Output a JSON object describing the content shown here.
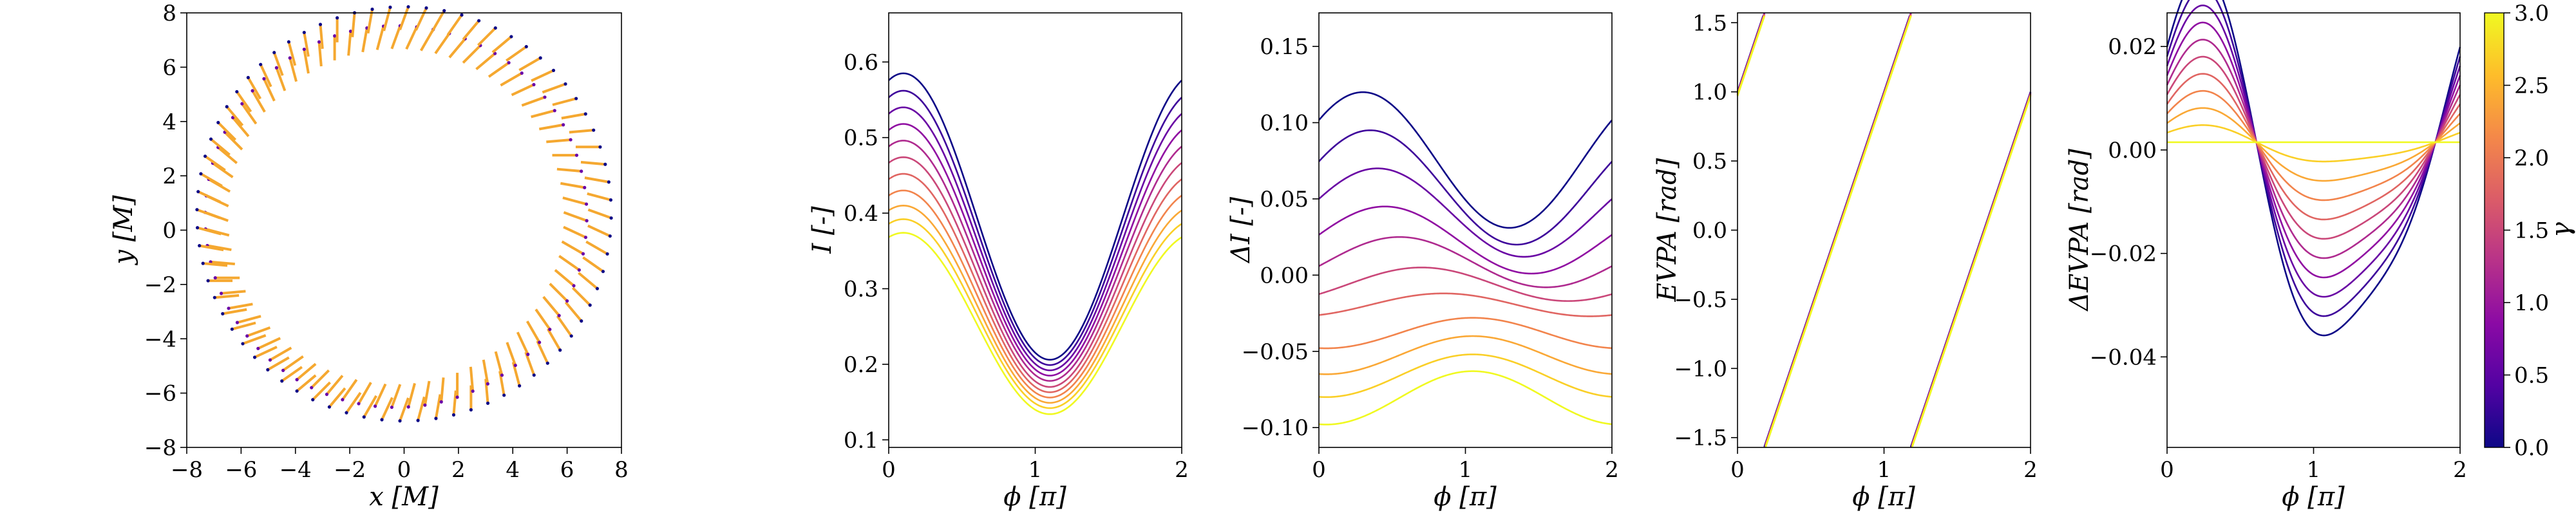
{
  "chart_data": [
    {
      "type": "scatter",
      "title": "",
      "xlabel": "x [M]",
      "ylabel": "y [M]",
      "xlim": [
        -8,
        8
      ],
      "ylim": [
        -8,
        8
      ],
      "xticks": [
        -8,
        -6,
        -4,
        -2,
        0,
        2,
        4,
        6,
        8
      ],
      "yticks": [
        -8,
        -6,
        -4,
        -2,
        0,
        2,
        4,
        6,
        8
      ],
      "ring": {
        "n_sticks": 72,
        "inner_center": [
          -0.3,
          0.5
        ],
        "inner_radius": 6.6,
        "outer_center": [
          0.0,
          0.6
        ],
        "outer_radius": 7.2,
        "stick_length": 0.9,
        "stick_angle_offset_deg": -20
      },
      "colors": {
        "sticks": "#f5a830",
        "dots_inner": "#6a00a8",
        "dots_outer": "#0d0887"
      },
      "grid": false
    },
    {
      "type": "line",
      "xlabel": "ϕ [π]",
      "ylabel": "I [-]",
      "xlim": [
        0,
        2
      ],
      "ylim": [
        0.09,
        0.665
      ],
      "xticks": [
        0,
        1,
        2
      ],
      "yticks": [
        0.1,
        0.2,
        0.3,
        0.4,
        0.5,
        0.6
      ],
      "series_model": "I(ϕ) = a + b·cos(π(ϕ − 0.1))",
      "x_min": 1.1,
      "x_max": 0.1,
      "gammas": [
        0.0,
        0.3,
        0.6,
        0.9,
        1.2,
        1.5,
        1.8,
        2.1,
        2.4,
        2.7,
        3.0
      ],
      "min_values": [
        0.206,
        0.199,
        0.192,
        0.185,
        0.178,
        0.17,
        0.163,
        0.156,
        0.149,
        0.142,
        0.134
      ],
      "max_values": [
        0.585,
        0.562,
        0.54,
        0.518,
        0.496,
        0.474,
        0.452,
        0.43,
        0.41,
        0.392,
        0.374
      ],
      "grid": false
    },
    {
      "type": "line",
      "xlabel": "ϕ [π]",
      "ylabel": "ΔI [-]",
      "xlim": [
        0,
        2
      ],
      "ylim": [
        -0.113,
        0.172
      ],
      "xticks": [
        0,
        1,
        2
      ],
      "yticks": [
        -0.1,
        -0.05,
        0.0,
        0.05,
        0.1,
        0.15
      ],
      "series_model": "ΔI(ϕ) = c + d·cos(π(ϕ − p))",
      "gammas": [
        0.0,
        0.3,
        0.6,
        0.9,
        1.2,
        1.5,
        1.8,
        2.1,
        2.4,
        2.7,
        3.0
      ],
      "max_values": [
        0.12,
        0.095,
        0.07,
        0.045,
        0.025,
        0.005,
        -0.012,
        -0.028,
        -0.04,
        -0.052,
        -0.063
      ],
      "min_values": [
        0.031,
        0.02,
        0.012,
        0.001,
        -0.008,
        -0.017,
        -0.027,
        -0.048,
        -0.065,
        -0.08,
        -0.098
      ],
      "max_positions": [
        0.3,
        0.35,
        0.4,
        0.45,
        0.55,
        0.7,
        0.85,
        1.05,
        1.05,
        1.05,
        1.05
      ],
      "grid": false
    },
    {
      "type": "line",
      "xlabel": "ϕ [π]",
      "ylabel": "EVPA [rad]",
      "xlim": [
        0,
        2
      ],
      "ylim": [
        -1.571,
        1.571
      ],
      "xticks": [
        0,
        1,
        2
      ],
      "yticks": [
        -1.5,
        -1.0,
        -0.5,
        0.0,
        0.5,
        1.0,
        1.5
      ],
      "series_model": "EVPA(ϕ) = wrap(π·ϕ + 1.0 − 0.01·γ) into [−π/2, π/2]",
      "gammas": [
        0.0,
        0.3,
        0.6,
        0.9,
        1.2,
        1.5,
        1.8,
        2.1,
        2.4,
        2.7,
        3.0
      ],
      "grid": false
    },
    {
      "type": "line",
      "xlabel": "ϕ [π]",
      "ylabel": "ΔEVPA [rad]",
      "xlim": [
        0,
        2
      ],
      "ylim": [
        -0.0575,
        0.0265
      ],
      "xticks": [
        0,
        1,
        2
      ],
      "yticks": [
        -0.04,
        -0.02,
        0.0,
        0.02
      ],
      "series_model": "ΔEVPA(ϕ) = A·cos(π(ϕ − 0.2)) + 0.2·A·cos(2π(ϕ − 0.3)) − 0.2·A·cos(2π(0.2 − 0.3)) + c",
      "gammas": [
        0.0,
        0.3,
        0.6,
        0.9,
        1.2,
        1.5,
        1.8,
        2.1,
        2.4,
        2.7,
        3.0
      ],
      "amplitudes": [
        0.034,
        0.0306,
        0.0272,
        0.0238,
        0.0204,
        0.017,
        0.0136,
        0.0102,
        0.0068,
        0.0034,
        0.0
      ],
      "grid": false
    }
  ],
  "colorbar": {
    "label": "γ",
    "range": [
      0.0,
      3.0
    ],
    "ticks": [
      "0.0",
      "0.5",
      "1.0",
      "1.5",
      "2.0",
      "2.5",
      "3.0"
    ],
    "colormap": "plasma",
    "color_stops": [
      "#0d0887",
      "#5302a3",
      "#8b0aa5",
      "#b83289",
      "#db5c68",
      "#f48849",
      "#febd2a",
      "#f0f921"
    ]
  }
}
